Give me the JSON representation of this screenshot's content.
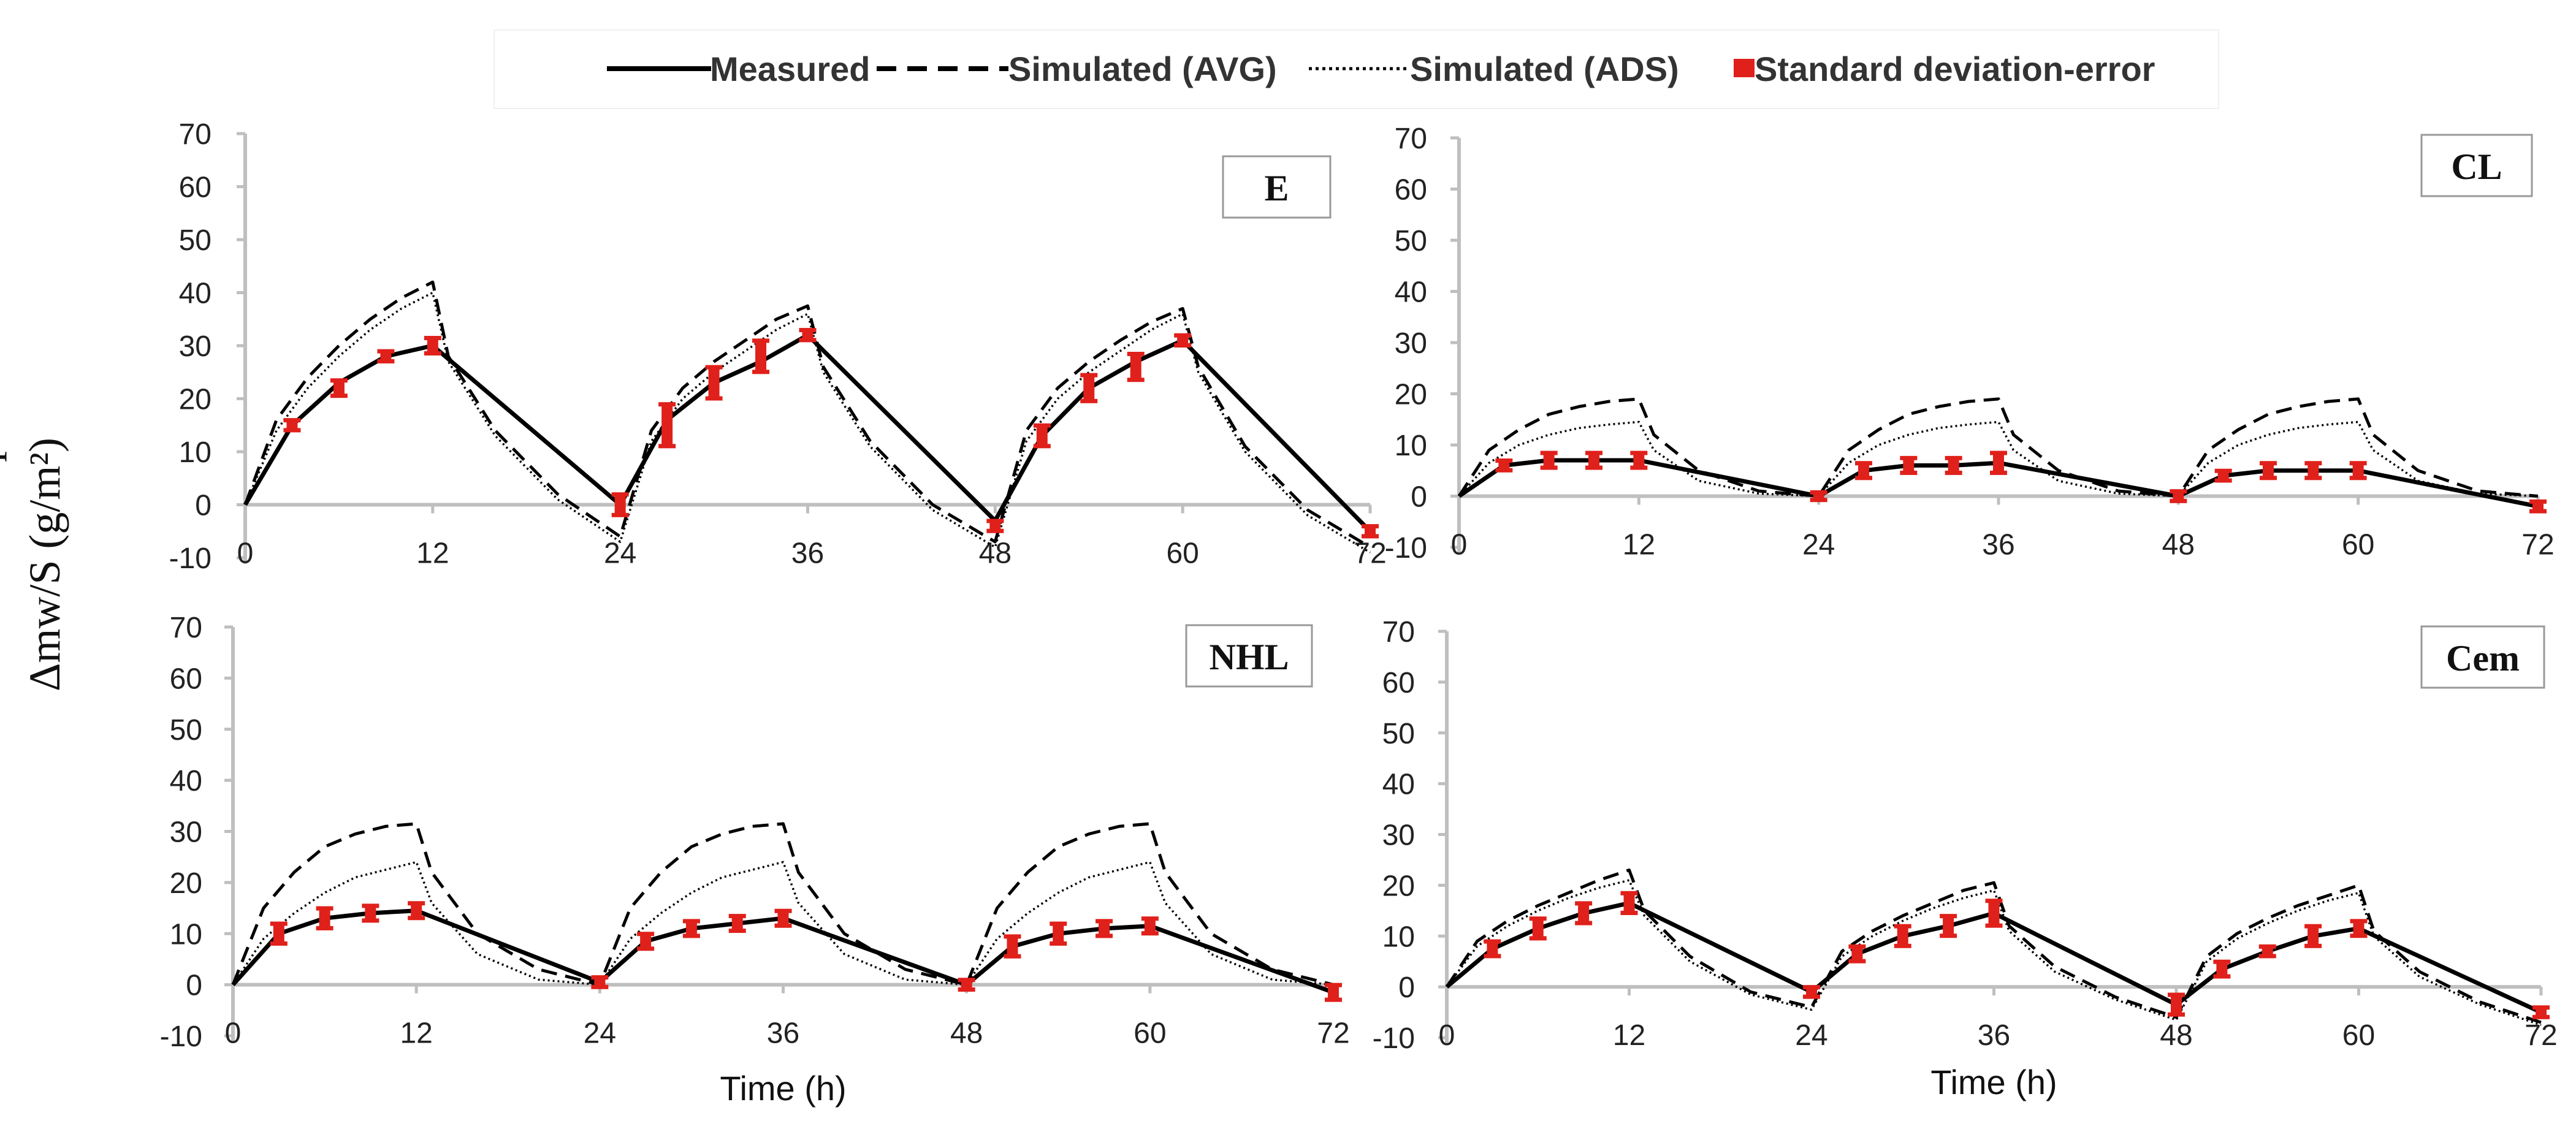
{
  "legend": {
    "measured": "Measured",
    "avg": "Simulated (AVG)",
    "ads": "Simulated (ADS)",
    "sd": "Standard deviation-error"
  },
  "ylabel": {
    "line1": "Moisture content variation per surface unit",
    "line2": "Δmw/S (g/m²)"
  },
  "colors": {
    "line": "#000000",
    "error": "#e0201a",
    "axis": "#bfbfbf",
    "tick_text": "#222222"
  },
  "chart_data": [
    {
      "id": "E",
      "type": "line",
      "title": "E",
      "xlabel": "",
      "xlim": [
        0,
        72
      ],
      "ylim": [
        -10,
        70
      ],
      "xticks": [
        0,
        12,
        24,
        36,
        48,
        60,
        72
      ],
      "yticks": [
        -10,
        0,
        10,
        20,
        30,
        40,
        50,
        60,
        70
      ],
      "series": [
        {
          "name": "Measured",
          "style": "solid",
          "x": [
            0,
            3,
            6,
            9,
            12,
            24,
            27,
            30,
            33,
            36,
            48,
            51,
            54,
            57,
            60,
            72
          ],
          "y": [
            0,
            15,
            23,
            28,
            30,
            0,
            16,
            23,
            27,
            32,
            -3,
            13,
            22,
            27,
            31,
            -5
          ]
        },
        {
          "name": "Simulated (AVG)",
          "style": "dashed",
          "x": [
            0,
            2,
            4,
            6,
            8,
            10,
            12,
            13,
            16,
            20,
            24,
            26,
            28,
            30,
            32,
            34,
            36,
            37,
            40,
            44,
            48,
            50,
            52,
            54,
            56,
            58,
            60,
            61,
            64,
            68,
            72
          ],
          "y": [
            0,
            16,
            24,
            30,
            35,
            39,
            42,
            28,
            14,
            2,
            -6,
            14,
            22,
            27,
            31,
            35,
            37.5,
            26,
            12,
            0,
            -7,
            14,
            22,
            27,
            31,
            34.5,
            37,
            26,
            11,
            -1,
            -8
          ]
        },
        {
          "name": "Simulated (ADS)",
          "style": "dotted",
          "x": [
            0,
            2,
            4,
            6,
            8,
            10,
            12,
            13,
            16,
            20,
            24,
            26,
            28,
            30,
            32,
            34,
            36,
            37,
            40,
            44,
            48,
            50,
            52,
            54,
            56,
            58,
            60,
            61,
            64,
            68,
            72
          ],
          "y": [
            0,
            14,
            22,
            28,
            33,
            37,
            40,
            27,
            13,
            1,
            -7,
            12,
            20,
            25,
            29,
            33,
            36,
            25,
            11,
            -1,
            -8,
            12,
            20,
            25,
            29,
            33,
            36,
            25,
            10,
            -2,
            -9
          ]
        },
        {
          "name": "Standard deviation-error",
          "points": [
            [
              3,
              15,
              1
            ],
            [
              6,
              22,
              1.5
            ],
            [
              9,
              28,
              1
            ],
            [
              12,
              30,
              1.5
            ],
            [
              24,
              0,
              2
            ],
            [
              27,
              15,
              4
            ],
            [
              30,
              23,
              3
            ],
            [
              33,
              28,
              3
            ],
            [
              36,
              32,
              1
            ],
            [
              48,
              -4,
              1
            ],
            [
              51,
              13,
              2
            ],
            [
              54,
              22,
              2.5
            ],
            [
              57,
              26,
              2.5
            ],
            [
              60,
              31,
              1
            ],
            [
              72,
              -5,
              1
            ]
          ]
        }
      ]
    },
    {
      "id": "CL",
      "type": "line",
      "title": "CL",
      "xlabel": "",
      "xlim": [
        0,
        72
      ],
      "ylim": [
        -10,
        70
      ],
      "xticks": [
        0,
        12,
        24,
        36,
        48,
        60,
        72
      ],
      "yticks": [
        -10,
        0,
        10,
        20,
        30,
        40,
        50,
        60,
        70
      ],
      "series": [
        {
          "name": "Measured",
          "style": "solid",
          "x": [
            0,
            3,
            6,
            9,
            12,
            24,
            27,
            30,
            33,
            36,
            48,
            51,
            54,
            57,
            60,
            72
          ],
          "y": [
            0,
            6,
            7,
            7,
            7,
            0,
            5,
            6,
            6,
            6.5,
            0,
            4,
            5,
            5,
            5,
            -2
          ]
        },
        {
          "name": "Simulated (AVG)",
          "style": "dashed",
          "x": [
            0,
            2,
            4,
            6,
            8,
            10,
            12,
            13,
            16,
            20,
            24,
            26,
            28,
            30,
            32,
            34,
            36,
            37,
            40,
            44,
            48,
            50,
            52,
            54,
            56,
            58,
            60,
            61,
            64,
            68,
            72
          ],
          "y": [
            0,
            9,
            13,
            16,
            17.5,
            18.5,
            19,
            12,
            5,
            1,
            0,
            9,
            13,
            16,
            17.5,
            18.5,
            19,
            12,
            5,
            1,
            0,
            9,
            13,
            16,
            17.5,
            18.5,
            19,
            12,
            5,
            1,
            0
          ]
        },
        {
          "name": "Simulated (ADS)",
          "style": "dotted",
          "x": [
            0,
            2,
            4,
            6,
            8,
            10,
            12,
            13,
            16,
            20,
            24,
            26,
            28,
            30,
            32,
            34,
            36,
            37,
            40,
            44,
            48,
            50,
            52,
            54,
            56,
            58,
            60,
            61,
            64,
            68,
            72
          ],
          "y": [
            0,
            6.5,
            10,
            12,
            13.3,
            14,
            14.5,
            9,
            3,
            0.5,
            0,
            6.5,
            10,
            12,
            13.3,
            14,
            14.5,
            9,
            3,
            0.5,
            0,
            6.5,
            10,
            12,
            13.3,
            14,
            14.5,
            9,
            3,
            0.5,
            0
          ]
        },
        {
          "name": "Standard deviation-error",
          "points": [
            [
              3,
              6,
              1
            ],
            [
              6,
              7,
              1.5
            ],
            [
              9,
              7,
              1.5
            ],
            [
              12,
              7,
              1.5
            ],
            [
              24,
              0,
              0.8
            ],
            [
              27,
              5,
              1.5
            ],
            [
              30,
              6,
              1.5
            ],
            [
              33,
              6,
              1.5
            ],
            [
              36,
              6.5,
              2
            ],
            [
              48,
              0,
              1
            ],
            [
              51,
              4,
              1
            ],
            [
              54,
              5,
              1.5
            ],
            [
              57,
              5,
              1.5
            ],
            [
              60,
              5,
              1.5
            ],
            [
              72,
              -2,
              1
            ]
          ]
        }
      ]
    },
    {
      "id": "NHL",
      "type": "line",
      "title": "NHL",
      "xlabel": "Time (h)",
      "xlim": [
        0,
        72
      ],
      "ylim": [
        -10,
        70
      ],
      "xticks": [
        0,
        12,
        24,
        36,
        48,
        60,
        72
      ],
      "yticks": [
        -10,
        0,
        10,
        20,
        30,
        40,
        50,
        60,
        70
      ],
      "series": [
        {
          "name": "Measured",
          "style": "solid",
          "x": [
            0,
            3,
            6,
            9,
            12,
            24,
            27,
            30,
            33,
            36,
            48,
            51,
            54,
            57,
            60,
            72
          ],
          "y": [
            0,
            10,
            13,
            14,
            14.5,
            0.5,
            8.5,
            11,
            12,
            13,
            0,
            7.5,
            10,
            11,
            11.5,
            -1.5
          ]
        },
        {
          "name": "Simulated (AVG)",
          "style": "dashed",
          "x": [
            0,
            2,
            4,
            6,
            8,
            10,
            12,
            13,
            16,
            20,
            24,
            26,
            28,
            30,
            32,
            34,
            36,
            37,
            40,
            44,
            48,
            50,
            52,
            54,
            56,
            58,
            60,
            61,
            64,
            68,
            72
          ],
          "y": [
            0,
            15,
            22,
            27,
            29.5,
            31,
            31.5,
            22,
            10,
            3,
            0,
            15,
            22,
            27,
            29.5,
            31,
            31.5,
            22,
            10,
            3,
            0,
            15,
            22,
            27,
            29.5,
            31,
            31.5,
            22,
            10,
            3,
            0
          ]
        },
        {
          "name": "Simulated (ADS)",
          "style": "dotted",
          "x": [
            0,
            2,
            4,
            6,
            8,
            10,
            12,
            13,
            16,
            20,
            24,
            26,
            28,
            30,
            32,
            34,
            36,
            37,
            40,
            44,
            48,
            50,
            52,
            54,
            56,
            58,
            60,
            61,
            64,
            68,
            72
          ],
          "y": [
            0,
            9,
            14,
            18,
            21,
            22.5,
            24,
            16,
            6,
            1,
            0,
            9,
            14,
            18,
            21,
            22.5,
            24,
            16,
            6,
            1,
            0,
            9,
            14,
            18,
            21,
            22.5,
            24,
            16,
            6,
            1,
            0
          ]
        },
        {
          "name": "Standard deviation-error",
          "points": [
            [
              3,
              10,
              2
            ],
            [
              6,
              13,
              2
            ],
            [
              9,
              14,
              1.5
            ],
            [
              12,
              14.5,
              1.5
            ],
            [
              24,
              0.5,
              1
            ],
            [
              27,
              8.5,
              1.5
            ],
            [
              30,
              11,
              1.5
            ],
            [
              33,
              12,
              1.5
            ],
            [
              36,
              13,
              1.5
            ],
            [
              48,
              0,
              1
            ],
            [
              51,
              7.5,
              2
            ],
            [
              54,
              10,
              2
            ],
            [
              57,
              11,
              1.5
            ],
            [
              60,
              11.5,
              1.5
            ],
            [
              72,
              -1.5,
              1.5
            ]
          ]
        }
      ]
    },
    {
      "id": "Cem",
      "type": "line",
      "title": "Cem",
      "xlabel": "Time (h)",
      "xlim": [
        0,
        72
      ],
      "ylim": [
        -10,
        70
      ],
      "xticks": [
        0,
        12,
        24,
        36,
        48,
        60,
        72
      ],
      "yticks": [
        -10,
        0,
        10,
        20,
        30,
        40,
        50,
        60,
        70
      ],
      "series": [
        {
          "name": "Measured",
          "style": "solid",
          "x": [
            0,
            3,
            6,
            9,
            12,
            24,
            27,
            30,
            33,
            36,
            48,
            51,
            54,
            57,
            60,
            72
          ],
          "y": [
            0,
            7.5,
            11.5,
            14.5,
            16.5,
            -1,
            6.5,
            10,
            12,
            14.5,
            -3.5,
            3.5,
            7,
            10,
            11.5,
            -5
          ]
        },
        {
          "name": "Simulated (AVG)",
          "style": "dashed",
          "x": [
            0,
            2,
            4,
            6,
            8,
            10,
            12,
            13,
            16,
            20,
            24,
            26,
            28,
            30,
            32,
            34,
            36,
            37,
            40,
            44,
            48,
            50,
            52,
            54,
            56,
            58,
            60,
            61,
            64,
            68,
            72
          ],
          "y": [
            0,
            9,
            13,
            16,
            18.5,
            21,
            23,
            15,
            6,
            -1,
            -4,
            7,
            11,
            14,
            16.5,
            19,
            20.5,
            12,
            4,
            -2,
            -6,
            6,
            10.5,
            13.5,
            16,
            18,
            20,
            11,
            3,
            -3,
            -7
          ]
        },
        {
          "name": "Simulated (ADS)",
          "style": "dotted",
          "x": [
            0,
            2,
            4,
            6,
            8,
            10,
            12,
            13,
            16,
            20,
            24,
            26,
            28,
            30,
            32,
            34,
            36,
            37,
            40,
            44,
            48,
            50,
            52,
            54,
            56,
            58,
            60,
            61,
            64,
            68,
            72
          ],
          "y": [
            0,
            8,
            12,
            15,
            17.5,
            19.5,
            21,
            14,
            5,
            -1.5,
            -4.5,
            6,
            10,
            13,
            15.5,
            17.5,
            19,
            11,
            3,
            -2.5,
            -6.5,
            5,
            9.5,
            12.5,
            15,
            17,
            18.5,
            10,
            2,
            -3.5,
            -7.5
          ]
        },
        {
          "name": "Standard deviation-error",
          "points": [
            [
              3,
              7.5,
              1.5
            ],
            [
              6,
              11.5,
              2
            ],
            [
              9,
              14.5,
              2
            ],
            [
              12,
              16.5,
              2
            ],
            [
              24,
              -1,
              1
            ],
            [
              27,
              6.5,
              1.5
            ],
            [
              30,
              10,
              2
            ],
            [
              33,
              12,
              2
            ],
            [
              36,
              14.5,
              2.5
            ],
            [
              48,
              -3.5,
              2
            ],
            [
              51,
              3.5,
              1.5
            ],
            [
              54,
              7,
              1
            ],
            [
              57,
              10,
              2
            ],
            [
              60,
              11.5,
              1.5
            ],
            [
              72,
              -5,
              1
            ]
          ]
        }
      ]
    }
  ]
}
